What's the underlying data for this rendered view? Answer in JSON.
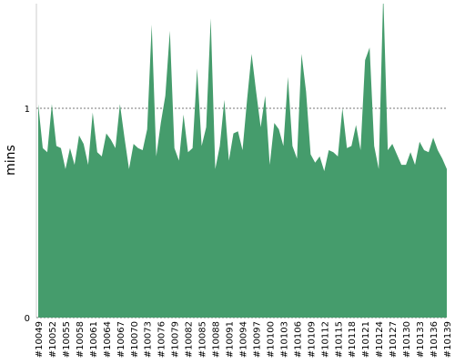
{
  "chart_data": {
    "type": "area",
    "ylabel": "mins",
    "categories": [
      "#10049",
      null,
      null,
      "#10052",
      null,
      null,
      "#10055",
      null,
      null,
      "#10058",
      null,
      null,
      "#10061",
      null,
      null,
      "#10064",
      null,
      null,
      "#10067",
      null,
      null,
      "#10070",
      null,
      null,
      "#10073",
      null,
      null,
      "#10076",
      null,
      null,
      "#10079",
      null,
      null,
      "#10082",
      null,
      null,
      "#10085",
      null,
      null,
      "#10088",
      null,
      null,
      "#10091",
      null,
      null,
      "#10094",
      null,
      null,
      "#10097",
      null,
      null,
      "#10100",
      null,
      null,
      "#10103",
      null,
      null,
      "#10106",
      null,
      null,
      "#10109",
      null,
      null,
      "#10112",
      null,
      null,
      "#10115",
      null,
      null,
      "#10118",
      null,
      null,
      "#10121",
      null,
      null,
      "#10124",
      null,
      null,
      "#10127",
      null,
      null,
      "#10130",
      null,
      null,
      "#10133",
      null,
      null,
      "#10136",
      null,
      null,
      "#10139"
    ],
    "values": [
      1.02,
      0.81,
      0.79,
      1.02,
      0.82,
      0.81,
      0.71,
      0.81,
      0.73,
      0.87,
      0.83,
      0.73,
      0.98,
      0.79,
      0.77,
      0.88,
      0.85,
      0.81,
      1.02,
      0.86,
      0.71,
      0.83,
      0.81,
      0.8,
      0.9,
      1.4,
      0.77,
      0.93,
      1.06,
      1.37,
      0.81,
      0.75,
      0.97,
      0.79,
      0.81,
      1.19,
      0.82,
      0.91,
      1.43,
      0.71,
      0.82,
      1.04,
      0.75,
      0.88,
      0.89,
      0.8,
      1.04,
      1.26,
      1.08,
      0.91,
      1.06,
      0.73,
      0.93,
      0.9,
      0.82,
      1.15,
      0.82,
      0.76,
      1.26,
      1.08,
      0.78,
      0.74,
      0.77,
      0.7,
      0.8,
      0.79,
      0.77,
      1.0,
      0.81,
      0.82,
      0.92,
      0.8,
      1.23,
      1.29,
      0.82,
      0.71,
      1.55,
      0.8,
      0.83,
      0.78,
      0.73,
      0.73,
      0.79,
      0.73,
      0.84,
      0.8,
      0.79,
      0.86,
      0.8,
      0.76,
      0.71
    ],
    "color": "#459c6c",
    "ylim": [
      0,
      1.5
    ],
    "yticks": [
      0,
      1
    ],
    "grid": true
  }
}
